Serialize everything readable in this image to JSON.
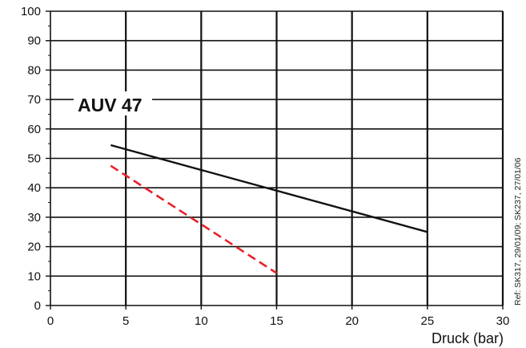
{
  "chart_data": {
    "type": "line",
    "title": "",
    "xlabel": "Druck (bar)",
    "ylabel": "",
    "xlim": [
      0,
      30
    ],
    "ylim": [
      0,
      100
    ],
    "x_ticks": [
      "0",
      "5",
      "10",
      "15",
      "20",
      "25",
      "30"
    ],
    "y_ticks": [
      "0",
      "10",
      "20",
      "30",
      "40",
      "50",
      "60",
      "70",
      "80",
      "90",
      "100"
    ],
    "grid": true,
    "series_label": "AUV 47",
    "series": [
      {
        "color": "#111111",
        "style": "solid",
        "points": [
          [
            4,
            54.5
          ],
          [
            25,
            25
          ]
        ]
      },
      {
        "color": "#e8202a",
        "style": "dashed",
        "points": [
          [
            4,
            47.5
          ],
          [
            15,
            11
          ]
        ]
      }
    ],
    "side_note": "Ref: SK317, 29/01/09; SK237, 27/01/06"
  }
}
